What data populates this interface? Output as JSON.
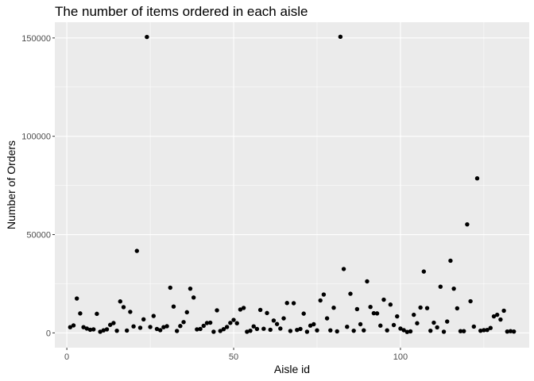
{
  "chart_data": {
    "type": "scatter",
    "title": "The number of items ordered in each aisle",
    "xlabel": "Aisle id",
    "ylabel": "Number of Orders",
    "xlim": [
      -3.6,
      138.6
    ],
    "ylim": [
      -7510,
      158000
    ],
    "x_ticks": [
      0,
      50,
      100
    ],
    "x_tick_labels": [
      "0",
      "50",
      "100"
    ],
    "y_ticks": [
      0,
      50000,
      100000,
      150000
    ],
    "y_tick_labels": [
      "0",
      "50000",
      "100000",
      "150000"
    ],
    "grid": true,
    "legend": "none",
    "panel_color": "#ebebeb",
    "point_color": "#000000",
    "x": [
      1,
      2,
      3,
      4,
      5,
      6,
      7,
      8,
      9,
      10,
      11,
      12,
      13,
      14,
      15,
      16,
      17,
      18,
      19,
      20,
      21,
      22,
      23,
      24,
      25,
      26,
      27,
      28,
      29,
      30,
      31,
      32,
      33,
      34,
      35,
      36,
      37,
      38,
      39,
      40,
      41,
      42,
      43,
      44,
      45,
      46,
      47,
      48,
      49,
      50,
      51,
      52,
      53,
      54,
      55,
      56,
      57,
      58,
      59,
      60,
      61,
      62,
      63,
      64,
      65,
      66,
      67,
      68,
      69,
      70,
      71,
      72,
      73,
      74,
      75,
      76,
      77,
      78,
      79,
      80,
      81,
      82,
      83,
      84,
      85,
      86,
      87,
      88,
      89,
      90,
      91,
      92,
      93,
      94,
      95,
      96,
      97,
      98,
      99,
      100,
      101,
      102,
      103,
      104,
      105,
      106,
      107,
      108,
      109,
      110,
      111,
      112,
      113,
      114,
      115,
      116,
      117,
      118,
      119,
      120,
      121,
      122,
      123,
      124,
      125,
      126,
      127,
      128,
      129,
      130,
      131,
      132,
      133,
      134
    ],
    "y": [
      2900,
      3800,
      17500,
      9900,
      2900,
      2200,
      1600,
      1800,
      9700,
      600,
      1300,
      1800,
      4100,
      5000,
      1100,
      16000,
      13100,
      1200,
      10700,
      3300,
      41700,
      2600,
      6900,
      150500,
      3000,
      8600,
      2000,
      1400,
      2900,
      3400,
      23000,
      13400,
      1000,
      3500,
      5500,
      10500,
      22500,
      18000,
      1800,
      2000,
      3600,
      5000,
      5200,
      600,
      11500,
      1000,
      1900,
      3000,
      5100,
      6600,
      4900,
      11900,
      12700,
      600,
      1100,
      3300,
      2000,
      11700,
      2100,
      10100,
      1600,
      6300,
      4500,
      2200,
      7400,
      15200,
      1000,
      15100,
      1500,
      2000,
      9800,
      600,
      3700,
      4400,
      1300,
      16500,
      19500,
      7400,
      1300,
      12800,
      800,
      150600,
      32500,
      3100,
      19900,
      1100,
      12100,
      4400,
      1300,
      26200,
      13200,
      10000,
      9900,
      3700,
      16900,
      1300,
      14400,
      4000,
      8400,
      2200,
      1400,
      500,
      800,
      9200,
      4900,
      12900,
      31200,
      12600,
      1100,
      5200,
      2800,
      23500,
      600,
      5800,
      36700,
      22500,
      12500,
      900,
      900,
      55200,
      16100,
      3200,
      78600,
      1100,
      1400,
      1500,
      2500,
      8400,
      9200,
      6800,
      11300,
      700,
      900,
      700
    ]
  }
}
